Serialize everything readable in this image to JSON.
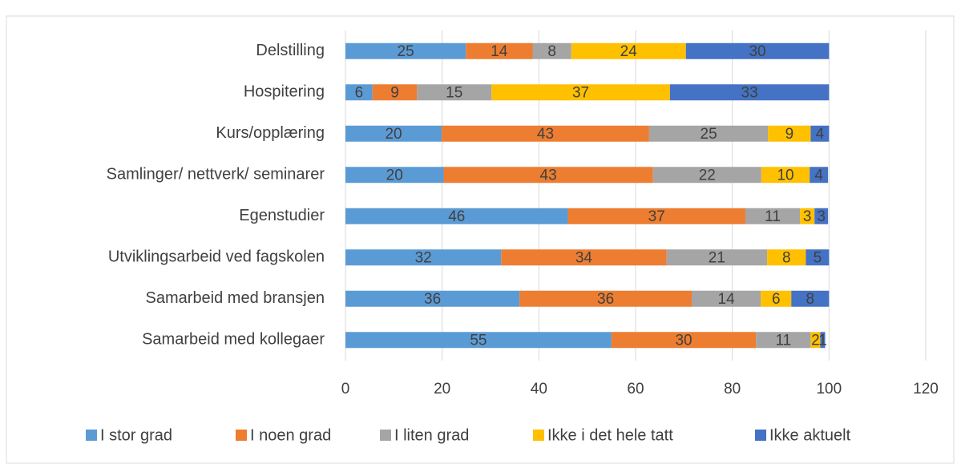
{
  "chart_data": {
    "type": "stacked-barh",
    "categories": [
      "Delstilling",
      "Hospitering",
      "Kurs/opplæring",
      "Samlinger/ nettverk/ seminarer",
      "Egenstudier",
      "Utviklingsarbeid ved fagskolen",
      "Samarbeid med bransjen",
      "Samarbeid med kollegaer"
    ],
    "series": [
      {
        "name": "I stor grad",
        "color": "#5b9bd5",
        "values": [
          24.9,
          5.6,
          19.9,
          20.3,
          46.0,
          32.2,
          36.0,
          55.0
        ],
        "value_labels": [
          "25",
          "6",
          "20",
          "20",
          "46",
          "32",
          "36",
          "55"
        ]
      },
      {
        "name": "I noen grad",
        "color": "#ed7d31",
        "values": [
          13.8,
          9.2,
          42.9,
          43.3,
          36.7,
          34.2,
          35.6,
          29.9
        ],
        "value_labels": [
          "14",
          "9",
          "43",
          "43",
          "37",
          "34",
          "36",
          "30"
        ]
      },
      {
        "name": "I liten grad",
        "color": "#a5a5a5",
        "values": [
          8.0,
          15.4,
          24.6,
          22.4,
          11.3,
          20.8,
          14.3,
          11.3
        ],
        "value_labels": [
          "8",
          "15",
          "25",
          "22",
          "11",
          "21",
          "14",
          "11"
        ]
      },
      {
        "name": "Ikke i det hele tatt",
        "color": "#ffc000",
        "values": [
          23.7,
          36.9,
          8.8,
          10.0,
          3.0,
          8.0,
          6.3,
          2.0
        ],
        "value_labels": [
          "24",
          "37",
          "9",
          "10",
          "3",
          "8",
          "6",
          "2"
        ]
      },
      {
        "name": "Ikke aktuelt",
        "color": "#4472c4",
        "values": [
          29.6,
          32.9,
          3.8,
          3.8,
          2.8,
          4.8,
          7.8,
          1.0
        ],
        "value_labels": [
          "30",
          "33",
          "4",
          "4",
          "3",
          "5",
          "8",
          "1"
        ]
      }
    ],
    "xlim": [
      0,
      120
    ],
    "xticks": [
      0,
      20,
      40,
      60,
      80,
      100,
      120
    ],
    "grid": true,
    "legend": "bottom"
  }
}
